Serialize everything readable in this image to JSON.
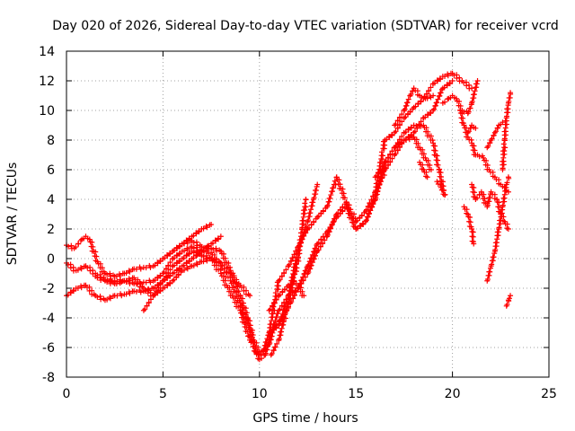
{
  "chart_data": {
    "type": "scatter",
    "title": "Day 020 of 2026, Sidereal Day-to-day VTEC variation (SDTVAR) for receiver vcrd",
    "xlabel": "GPS time / hours",
    "ylabel": "SDTVAR / TECUs",
    "xlim": [
      0,
      25
    ],
    "ylim": [
      -8,
      14
    ],
    "xticks": [
      0,
      5,
      10,
      15,
      20,
      25
    ],
    "yticks": [
      -8,
      -6,
      -4,
      -2,
      0,
      2,
      4,
      6,
      8,
      10,
      12,
      14
    ],
    "grid": true,
    "marker": "+",
    "color": "#ff0000",
    "series": [
      {
        "x": [
          0.0,
          0.4,
          0.8,
          1.0,
          1.2,
          1.6,
          2.0,
          2.5,
          3.0,
          3.5,
          4.0,
          4.5,
          5.0,
          5.5,
          6.0,
          6.5,
          7.0,
          7.5,
          8.0,
          8.5,
          9.0,
          9.4,
          9.7,
          10.0,
          10.2,
          10.5,
          11.0,
          11.5,
          12.0,
          12.5,
          13.0,
          13.5,
          14.0,
          14.5,
          15.0,
          15.5,
          16.0,
          16.5,
          17.0,
          17.5,
          18.0,
          18.5,
          19.0,
          19.5,
          20.0,
          20.5,
          21.0
        ],
        "y": [
          0.9,
          0.7,
          1.3,
          1.5,
          1.3,
          -0.2,
          -1.0,
          -1.2,
          -1.0,
          -0.7,
          -0.6,
          -0.5,
          0.0,
          0.5,
          1.0,
          1.2,
          0.8,
          0.7,
          0.5,
          -0.8,
          -2.5,
          -4.0,
          -5.5,
          -6.3,
          -6.2,
          -5.0,
          -1.5,
          -0.5,
          0.8,
          2.0,
          2.8,
          3.5,
          5.5,
          3.8,
          2.5,
          3.2,
          4.5,
          8.0,
          8.5,
          9.5,
          10.2,
          10.8,
          11.8,
          12.3,
          12.5,
          12.0,
          11.5
        ]
      },
      {
        "x": [
          0.0,
          0.5,
          1.0,
          1.5,
          2.0,
          2.5,
          3.0,
          3.5,
          4.0,
          4.5,
          5.0,
          5.5,
          6.0,
          6.5,
          7.0,
          7.5,
          8.0,
          8.5,
          9.0,
          9.5,
          9.8,
          10.0,
          10.3,
          10.6,
          11.0,
          11.5,
          12.0,
          12.5,
          13.0,
          13.5,
          14.0,
          14.5,
          15.0,
          15.5,
          16.0,
          16.5,
          17.0,
          17.5,
          18.0,
          18.5,
          19.0,
          19.3,
          19.6
        ],
        "y": [
          -0.3,
          -0.8,
          -0.5,
          -1.0,
          -1.4,
          -1.5,
          -1.5,
          -1.7,
          -1.6,
          -1.5,
          -1.0,
          0.0,
          0.5,
          0.8,
          0.5,
          0.4,
          -0.5,
          -1.5,
          -3.0,
          -4.8,
          -6.3,
          -6.8,
          -6.5,
          -5.0,
          -3.5,
          -2.5,
          -2.0,
          -0.5,
          1.0,
          1.8,
          2.8,
          3.5,
          2.0,
          2.5,
          4.0,
          6.5,
          7.5,
          8.5,
          9.0,
          9.0,
          7.8,
          6.0,
          4.3
        ]
      },
      {
        "x": [
          0.0,
          0.5,
          1.0,
          1.5,
          2.0,
          2.5,
          3.0,
          3.5,
          4.0,
          4.5,
          5.0,
          5.5,
          6.0,
          6.5,
          7.0,
          7.5,
          8.0,
          8.3,
          8.6,
          9.0,
          9.5,
          10.0,
          10.5,
          10.8,
          11.2,
          11.6,
          12.0,
          12.5,
          13.0,
          13.5,
          14.0,
          14.5,
          15.0,
          15.5,
          16.0,
          16.5,
          17.0,
          17.5,
          18.0,
          18.5,
          19.0,
          19.5,
          20.0
        ],
        "y": [
          -2.5,
          -2.0,
          -1.8,
          -2.5,
          -2.8,
          -2.5,
          -2.4,
          -2.2,
          -2.2,
          -2.0,
          -1.5,
          -0.5,
          0.0,
          0.5,
          0.2,
          0.0,
          -1.0,
          -1.8,
          -2.5,
          -3.5,
          -5.5,
          -6.5,
          -5.8,
          -4.5,
          -4.0,
          -3.0,
          -2.0,
          -1.0,
          0.5,
          1.5,
          3.0,
          3.8,
          2.0,
          2.5,
          4.2,
          6.0,
          7.0,
          8.0,
          8.5,
          9.5,
          10.0,
          11.5,
          12.0
        ]
      },
      {
        "x": [
          1.5,
          2.0,
          2.5,
          3.0,
          3.5,
          4.0,
          4.5,
          5.0,
          5.5,
          6.0,
          6.5,
          7.0,
          7.5,
          8.0,
          8.5,
          9.0,
          9.5
        ],
        "y": [
          -1.2,
          -1.5,
          -1.7,
          -1.5,
          -1.3,
          -2.0,
          -2.5,
          -2.0,
          -1.5,
          -0.8,
          -0.5,
          -0.2,
          0.0,
          -0.3,
          -1.0,
          -1.8,
          -2.5
        ]
      },
      {
        "x": [
          4.0,
          4.5,
          5.0,
          5.5,
          6.0,
          6.5,
          7.0,
          7.5,
          8.0
        ],
        "y": [
          -3.5,
          -2.5,
          -1.5,
          -1.0,
          -0.5,
          0.0,
          0.5,
          1.0,
          1.5
        ]
      },
      {
        "x": [
          5.5,
          6.0,
          6.5,
          7.0,
          7.5
        ],
        "y": [
          0.5,
          1.0,
          1.5,
          2.0,
          2.3
        ]
      },
      {
        "x": [
          10.5,
          11.0,
          11.5,
          11.8,
          12.0,
          12.3
        ],
        "y": [
          -3.5,
          -2.5,
          -1.8,
          -1.5,
          -1.8,
          -2.5
        ]
      },
      {
        "x": [
          10.6,
          11.0,
          11.5,
          12.0,
          12.2,
          12.4
        ],
        "y": [
          -6.5,
          -5.5,
          -3.0,
          0.0,
          2.0,
          4.0
        ]
      },
      {
        "x": [
          10.5,
          11.0,
          11.5,
          12.0,
          12.5,
          12.8,
          13.0
        ],
        "y": [
          -5.0,
          -4.5,
          -2.5,
          0.5,
          2.5,
          4.0,
          5.0
        ]
      },
      {
        "x": [
          16.0,
          16.5,
          17.0,
          17.5,
          18.0,
          18.3,
          18.6,
          18.9
        ],
        "y": [
          5.5,
          6.5,
          7.5,
          8.0,
          8.2,
          7.5,
          6.8,
          6.0
        ]
      },
      {
        "x": [
          17.0,
          17.5,
          17.8,
          18.0,
          18.3,
          18.6,
          19.0
        ],
        "y": [
          9.0,
          10.0,
          11.0,
          11.5,
          11.0,
          10.8,
          11.0
        ]
      },
      {
        "x": [
          19.5,
          19.8,
          20.0,
          20.2,
          20.5,
          20.8,
          21.0,
          21.3
        ],
        "y": [
          10.5,
          10.8,
          11.0,
          10.8,
          10.0,
          9.8,
          10.5,
          12.0
        ]
      },
      {
        "x": [
          20.4,
          20.6,
          20.8,
          21.0,
          21.2
        ],
        "y": [
          10.0,
          9.0,
          8.2,
          7.8,
          7.0
        ]
      },
      {
        "x": [
          20.6,
          20.8,
          21.0,
          21.1
        ],
        "y": [
          3.5,
          3.0,
          2.0,
          1.0
        ]
      },
      {
        "x": [
          21.0,
          21.2,
          21.5,
          21.8,
          22.0,
          22.3,
          22.5,
          22.7,
          22.9
        ],
        "y": [
          5.0,
          4.0,
          4.5,
          3.5,
          4.5,
          4.0,
          3.0,
          2.5,
          2.0
        ]
      },
      {
        "x": [
          21.8,
          22.0,
          22.2,
          22.4,
          22.6,
          22.8,
          22.9
        ],
        "y": [
          -1.5,
          -0.5,
          0.5,
          2.0,
          3.5,
          5.0,
          5.5
        ]
      },
      {
        "x": [
          21.3,
          21.6,
          21.9,
          22.2,
          22.5,
          22.7,
          22.9
        ],
        "y": [
          7.0,
          6.8,
          6.0,
          5.5,
          5.0,
          4.8,
          4.5
        ]
      },
      {
        "x": [
          21.8,
          22.0,
          22.2,
          22.4,
          22.6
        ],
        "y": [
          7.5,
          8.0,
          8.5,
          9.0,
          9.2
        ]
      },
      {
        "x": [
          22.6,
          22.7,
          22.8,
          22.9,
          23.0
        ],
        "y": [
          6.0,
          8.0,
          9.5,
          10.5,
          11.2
        ]
      },
      {
        "x": [
          22.8,
          22.9,
          23.0
        ],
        "y": [
          -3.2,
          -2.8,
          -2.5
        ]
      },
      {
        "x": [
          18.3,
          18.5,
          18.7
        ],
        "y": [
          6.5,
          6.0,
          5.5
        ]
      },
      {
        "x": [
          19.2,
          19.4,
          19.6
        ],
        "y": [
          5.2,
          4.8,
          4.3
        ]
      },
      {
        "x": [
          20.8,
          21.0,
          21.2
        ],
        "y": [
          8.5,
          9.0,
          8.8
        ]
      }
    ]
  }
}
